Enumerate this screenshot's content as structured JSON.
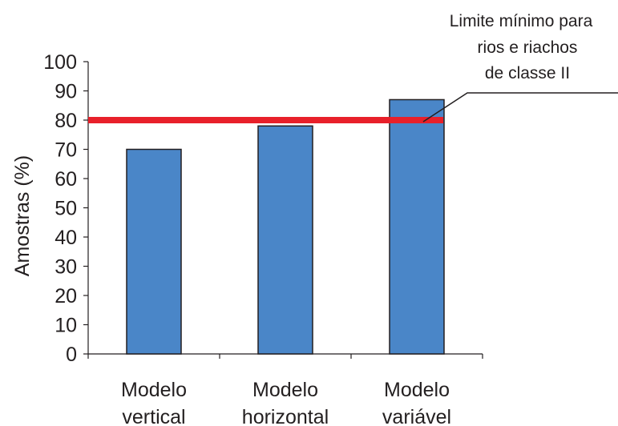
{
  "chart_data": {
    "type": "bar",
    "title": "",
    "xlabel": "",
    "ylabel": "Amostras (%)",
    "ylim": [
      0,
      100
    ],
    "yticks": [
      0,
      10,
      20,
      30,
      40,
      50,
      60,
      70,
      80,
      90,
      100
    ],
    "categories": [
      [
        "Modelo",
        "vertical"
      ],
      [
        "Modelo",
        "horizontal"
      ],
      [
        "Modelo",
        "variável"
      ]
    ],
    "values": [
      70,
      78,
      87
    ],
    "grid": false,
    "legend": "none",
    "reference_line": {
      "value": 80,
      "label": [
        "Limite mínimo para",
        "rios e riachos",
        "de classe II"
      ]
    },
    "colors": {
      "bar_fill": "#4a86c8",
      "bar_stroke": "#231f20",
      "reference_line": "#e8202a",
      "axis": "#231f20"
    }
  }
}
